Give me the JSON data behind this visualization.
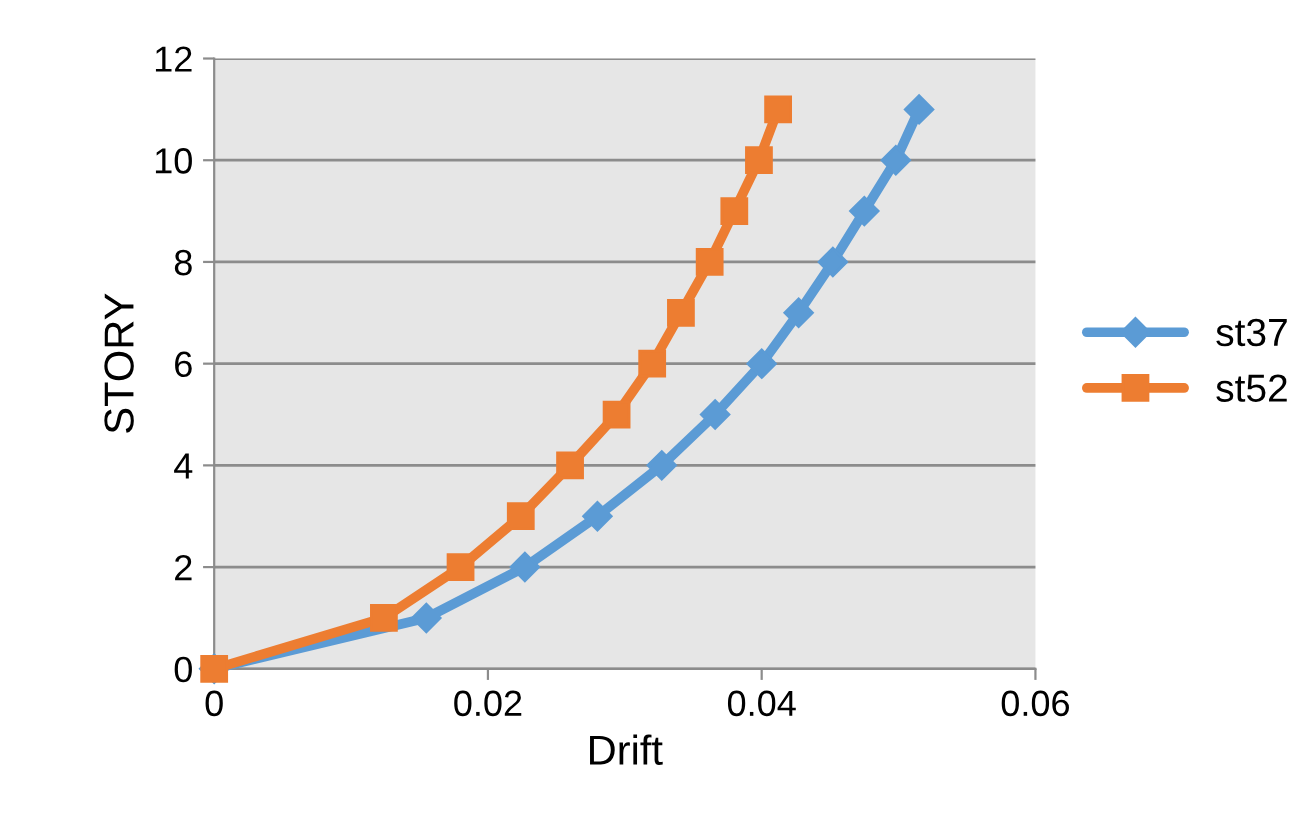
{
  "chart_data": {
    "type": "line",
    "xlabel": "Drift",
    "ylabel": "STORY",
    "xlim": [
      0,
      0.06
    ],
    "xticks": [
      0,
      0.02,
      0.04,
      0.06
    ],
    "ylim": [
      0,
      12
    ],
    "yticks": [
      0,
      2,
      4,
      6,
      8,
      10,
      12
    ],
    "grid": "y",
    "legend": "right",
    "line_style": "solid",
    "series": [
      {
        "name": "st37",
        "color": "#5b9bd5",
        "marker": "diamond",
        "x": [
          0,
          0.0155,
          0.0227,
          0.028,
          0.0327,
          0.0366,
          0.04,
          0.0427,
          0.0452,
          0.0475,
          0.0498,
          0.0515
        ],
        "values": [
          0,
          1,
          2,
          3,
          4,
          5,
          6,
          7,
          8,
          9,
          10,
          11
        ]
      },
      {
        "name": "st52",
        "color": "#ed7d31",
        "marker": "square",
        "x": [
          0,
          0.0124,
          0.018,
          0.0224,
          0.026,
          0.0294,
          0.032,
          0.0341,
          0.0362,
          0.038,
          0.0398,
          0.0412
        ],
        "values": [
          0,
          1,
          2,
          3,
          4,
          5,
          6,
          7,
          8,
          9,
          10,
          11
        ]
      }
    ]
  }
}
